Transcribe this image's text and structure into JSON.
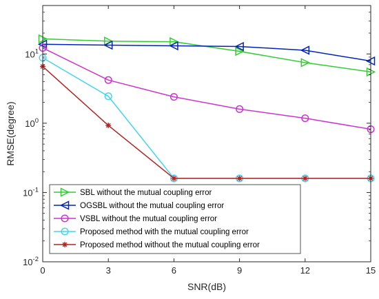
{
  "chart_data": {
    "type": "line",
    "title": "",
    "xlabel": "SNR(dB)",
    "ylabel": "RMSE(degree)",
    "xscale": "linear",
    "yscale": "log",
    "xlim": [
      0,
      15
    ],
    "ylim": [
      0.01,
      50
    ],
    "x": [
      0,
      3,
      6,
      9,
      12,
      15
    ],
    "xticks": [
      0,
      3,
      6,
      9,
      12,
      15
    ],
    "xtick_labels": [
      "0",
      "3",
      "6",
      "9",
      "12",
      "15"
    ],
    "yticks": [
      0.01,
      0.1,
      1,
      10
    ],
    "ytick_labels": [
      {
        "base": "10",
        "exp": "-2"
      },
      {
        "base": "10",
        "exp": "-1"
      },
      {
        "base": "10",
        "exp": "0"
      },
      {
        "base": "10",
        "exp": "1"
      }
    ],
    "grid": false,
    "legend_position": "lower-left",
    "series": [
      {
        "name": "SBL without the mutual coupling error",
        "values": [
          16.5,
          15.3,
          15.0,
          10.9,
          7.5,
          5.5
        ],
        "color": "#33cc33",
        "marker": "triangle-right"
      },
      {
        "name": "OGSBL without the mutual coupling error",
        "values": [
          13.8,
          13.4,
          13.1,
          12.8,
          11.3,
          7.9
        ],
        "color": "#0022bb",
        "marker": "triangle-left"
      },
      {
        "name": "VSBL without the mutual coupling error",
        "values": [
          12.2,
          4.2,
          2.4,
          1.6,
          1.18,
          0.82
        ],
        "color": "#cc33cc",
        "marker": "circle"
      },
      {
        "name": "Proposed method with the mutual coupling error",
        "values": [
          8.8,
          2.45,
          0.16,
          0.16,
          0.16,
          0.16
        ],
        "color": "#44d4f0",
        "marker": "circle"
      },
      {
        "name": "Proposed method without the mutual coupling error",
        "values": [
          6.6,
          0.93,
          0.16,
          0.16,
          0.16,
          0.16
        ],
        "color": "#b22222",
        "marker": "asterisk"
      }
    ]
  }
}
